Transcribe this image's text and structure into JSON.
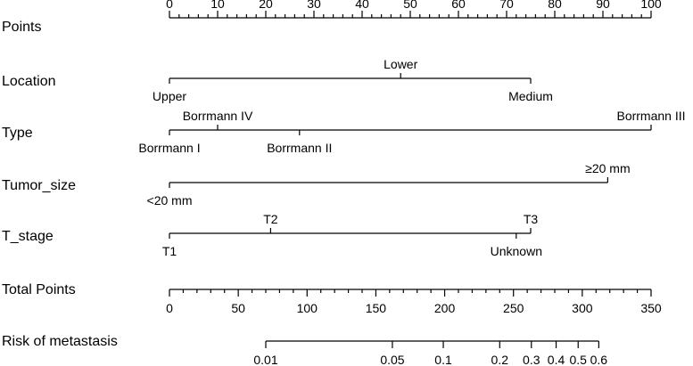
{
  "chart_data": {
    "type": "nomogram",
    "points_axis": {
      "label": "Points",
      "min": 0,
      "max": 100,
      "major_ticks": [
        0,
        10,
        20,
        30,
        40,
        50,
        60,
        70,
        80,
        90,
        100
      ],
      "minor_step": 2
    },
    "variables": [
      {
        "label": "Location",
        "levels": [
          {
            "name": "Upper",
            "points": 0,
            "side": "below"
          },
          {
            "name": "Lower",
            "points": 48,
            "side": "above"
          },
          {
            "name": "Medium",
            "points": 75,
            "side": "below"
          }
        ]
      },
      {
        "label": "Type",
        "levels": [
          {
            "name": "Borrmann I",
            "points": 0,
            "side": "below"
          },
          {
            "name": "Borrmann IV",
            "points": 10,
            "side": "above"
          },
          {
            "name": "Borrmann II",
            "points": 27,
            "side": "below"
          },
          {
            "name": "Borrmann III",
            "points": 100,
            "side": "above"
          }
        ]
      },
      {
        "label": "Tumor_size",
        "levels": [
          {
            "name": "<20 mm",
            "points": 0,
            "side": "below"
          },
          {
            "name": "≥20 mm",
            "points": 91,
            "side": "above"
          }
        ]
      },
      {
        "label": "T_stage",
        "levels": [
          {
            "name": "T1",
            "points": 0,
            "side": "below"
          },
          {
            "name": "T2",
            "points": 21,
            "side": "above"
          },
          {
            "name": "Unknown",
            "points": 72,
            "side": "below"
          },
          {
            "name": "T3",
            "points": 75,
            "side": "above"
          }
        ]
      }
    ],
    "total_points_axis": {
      "label": "Total Points",
      "min": 0,
      "max": 350,
      "major_ticks": [
        0,
        50,
        100,
        150,
        200,
        250,
        300,
        350
      ],
      "minor_step": 10
    },
    "risk_axis": {
      "label": "Risk of metastasis",
      "ticks": [
        {
          "label": "0.01",
          "total_points": 70
        },
        {
          "label": "0.05",
          "total_points": 162
        },
        {
          "label": "0.1",
          "total_points": 199
        },
        {
          "label": "0.2",
          "total_points": 240
        },
        {
          "label": "0.3",
          "total_points": 263
        },
        {
          "label": "0.4",
          "total_points": 281
        },
        {
          "label": "0.5",
          "total_points": 297
        },
        {
          "label": "0.6",
          "total_points": 312
        }
      ]
    }
  }
}
